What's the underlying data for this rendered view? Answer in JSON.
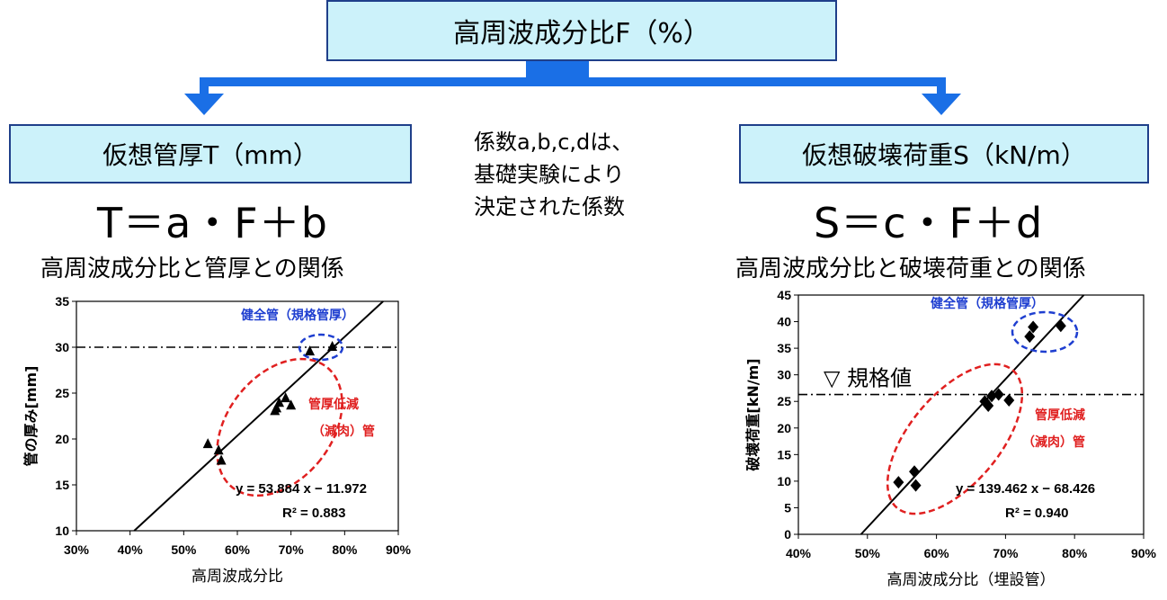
{
  "top_box": {
    "label": "高周波成分比F（%）"
  },
  "left": {
    "box_label": "仮想管厚T（mm）",
    "formula": "T＝a・F＋b",
    "caption": "高周波成分比と管厚との関係"
  },
  "center_note": {
    "lines": [
      "係数a,b,c,dは、",
      "基礎実験により",
      "決定された係数"
    ]
  },
  "right": {
    "box_label": "仮想破壊荷重S（kN/m）",
    "formula": "S＝c・F＋d",
    "caption": "高周波成分比と破壊荷重との関係"
  },
  "colors": {
    "box_fill": "#ccf2fa",
    "box_border": "#1f3f8a",
    "arrow": "#1a6fe6",
    "blue_annot": "#1f3fd0",
    "red_annot": "#e02020"
  },
  "chart_data": [
    {
      "type": "scatter",
      "xlabel": "高周波成分比",
      "ylabel": "管の厚み[mm]",
      "xlim": [
        0.3,
        0.9
      ],
      "ylim": [
        10,
        35
      ],
      "x_ticks": [
        "30%",
        "40%",
        "50%",
        "60%",
        "70%",
        "80%",
        "90%"
      ],
      "y_ticks": [
        "10",
        "15",
        "20",
        "25",
        "30",
        "35"
      ],
      "marker": "triangle",
      "points": [
        [
          0.545,
          19.5
        ],
        [
          0.565,
          18.8
        ],
        [
          0.57,
          17.7
        ],
        [
          0.67,
          23.1
        ],
        [
          0.673,
          23.4
        ],
        [
          0.678,
          24.0
        ],
        [
          0.69,
          24.5
        ],
        [
          0.7,
          23.7
        ],
        [
          0.735,
          29.6
        ],
        [
          0.777,
          30.1
        ]
      ],
      "trendline": {
        "slope": 53.884,
        "intercept": -11.972
      },
      "equation": "y = 53.884 x − 11.972",
      "r2": "R² = 0.883",
      "reference_line": {
        "y": 30
      },
      "annotations": {
        "blue": "健全管（規格管厚）",
        "red_line1": "管厚低減",
        "red_line2": "（減肉）管"
      }
    },
    {
      "type": "scatter",
      "xlabel": "高周波成分比（埋設管）",
      "ylabel": "破壊荷重[kN/m]",
      "xlim": [
        0.4,
        0.9
      ],
      "ylim": [
        0,
        45
      ],
      "x_ticks": [
        "40%",
        "50%",
        "60%",
        "70%",
        "80%",
        "90%"
      ],
      "y_ticks": [
        "0",
        "5",
        "10",
        "15",
        "20",
        "25",
        "30",
        "35",
        "40",
        "45"
      ],
      "marker": "diamond",
      "points": [
        [
          0.545,
          9.8
        ],
        [
          0.568,
          11.8
        ],
        [
          0.57,
          9.2
        ],
        [
          0.67,
          25.0
        ],
        [
          0.675,
          24.2
        ],
        [
          0.68,
          26.0
        ],
        [
          0.69,
          26.3
        ],
        [
          0.705,
          25.2
        ],
        [
          0.735,
          37.2
        ],
        [
          0.74,
          39.0
        ],
        [
          0.78,
          39.2
        ]
      ],
      "trendline": {
        "slope": 139.462,
        "intercept": -68.426
      },
      "equation": "y = 139.462 x − 68.426",
      "r2": "R² = 0.940",
      "reference_line": {
        "y": 26.3,
        "label": "▽ 規格値"
      },
      "annotations": {
        "blue": "健全管（規格管厚）",
        "red_line1": "管厚低減",
        "red_line2": "（減肉）管"
      }
    }
  ]
}
